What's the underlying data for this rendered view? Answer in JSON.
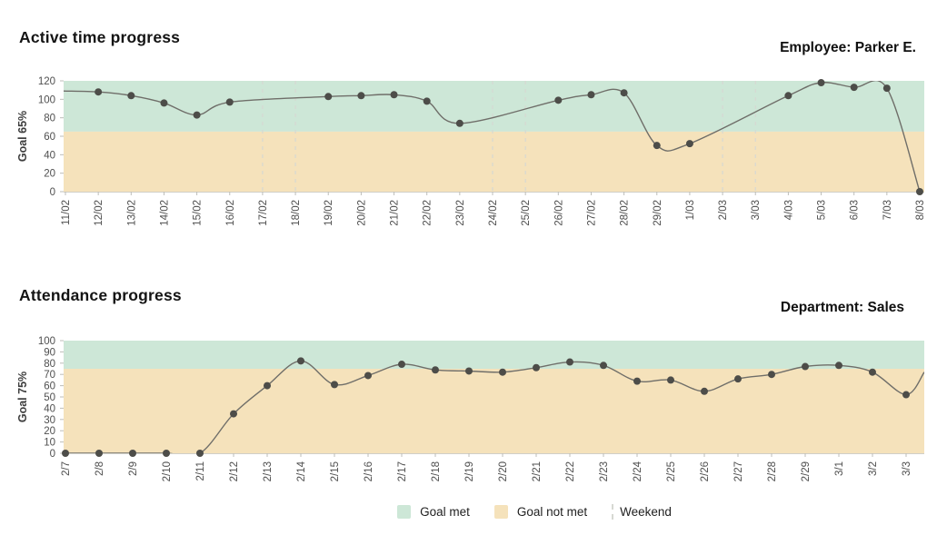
{
  "colors": {
    "goal_met_zone": "#cde7d7",
    "goal_not_met_zone": "#f5e2bb",
    "line": "#6f6e69",
    "point": "#4d4d49",
    "weekend_line": "#d6d8d2",
    "tick_mark": "#bdbdb8",
    "tick_text": "#4f4f4f",
    "axis_label_text": "#3d3d3d",
    "plot_bottom_border": "#d0cfc8"
  },
  "chart_data": [
    {
      "type": "line",
      "title": "Active time progress",
      "annotation": "Employee: Parker E.",
      "ylabel": "Goal 65%",
      "goal_value": 65,
      "ylim": [
        0,
        120
      ],
      "ytick_step": 20,
      "grid": false,
      "legend_position": "bottom",
      "x": [
        "11/02",
        "12/02",
        "13/02",
        "14/02",
        "15/02",
        "16/02",
        "17/02",
        "18/02",
        "19/02",
        "20/02",
        "21/02",
        "22/02",
        "23/02",
        "24/02",
        "25/02",
        "26/02",
        "27/02",
        "28/02",
        "29/02",
        "1/03",
        "2/03",
        "3/03",
        "4/03",
        "5/03",
        "6/03",
        "7/03",
        "8/03"
      ],
      "values": [
        null,
        108,
        104,
        96,
        83,
        97,
        null,
        null,
        103,
        104,
        105,
        98,
        74,
        null,
        null,
        99,
        105,
        107,
        50,
        52,
        null,
        null,
        104,
        118,
        113,
        112,
        0
      ],
      "weekend_x": [
        "17/02",
        "18/02",
        "24/02",
        "25/02",
        "2/03",
        "3/03"
      ],
      "leading_edge_value": 109,
      "trailing_edge_value": null
    },
    {
      "type": "line",
      "title": "Attendance progress",
      "annotation": "Department: Sales",
      "ylabel": "Goal 75%",
      "goal_value": 75,
      "ylim": [
        0,
        100
      ],
      "ytick_step": 10,
      "grid": false,
      "legend_position": "bottom",
      "x": [
        "2/7",
        "2/8",
        "2/9",
        "2/10",
        "2/11",
        "2/12",
        "2/13",
        "2/14",
        "2/15",
        "2/16",
        "2/17",
        "2/18",
        "2/19",
        "2/20",
        "2/21",
        "2/22",
        "2/23",
        "2/24",
        "2/25",
        "2/26",
        "2/27",
        "2/28",
        "2/29",
        "3/1",
        "3/2",
        "3/3"
      ],
      "values": [
        0,
        0,
        0,
        0,
        0,
        35,
        60,
        82,
        61,
        69,
        79,
        74,
        73,
        72,
        76,
        81,
        78,
        64,
        65,
        55,
        66,
        70,
        77,
        78,
        72,
        52
      ],
      "weekend_x": [],
      "leading_edge_value": null,
      "trailing_edge_value": 72
    }
  ],
  "legend": {
    "items": [
      {
        "name": "goal-met",
        "label": "Goal met",
        "swatch": "green"
      },
      {
        "name": "goal-not-met",
        "label": "Goal not met",
        "swatch": "tan"
      },
      {
        "name": "weekend",
        "label": "Weekend",
        "swatch": "dashed-line"
      }
    ]
  }
}
